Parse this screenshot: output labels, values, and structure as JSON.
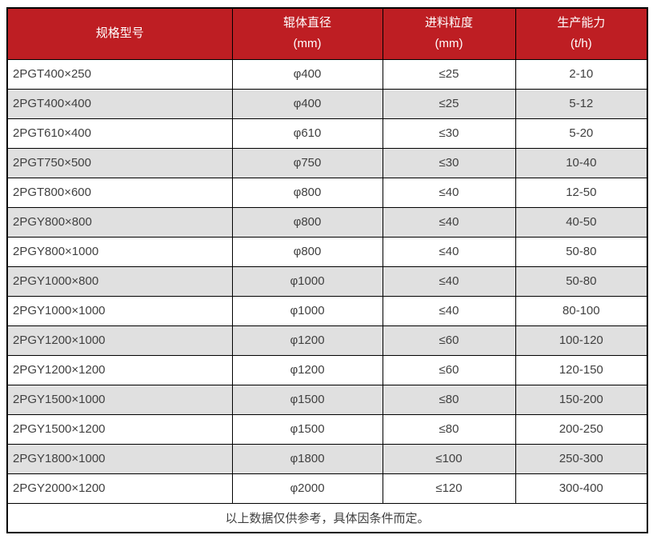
{
  "colors": {
    "header_bg": "#be1e23",
    "header_text": "#ffffff",
    "row_bg": "#ffffff",
    "row_alt_bg": "#e0e0e0",
    "border": "#000000",
    "cell_text": "#404040"
  },
  "chart_data": {
    "type": "table",
    "columns": [
      {
        "title": "规格型号",
        "unit": ""
      },
      {
        "title": "辊体直径",
        "unit": "(mm)"
      },
      {
        "title": "进料粒度",
        "unit": "(mm)"
      },
      {
        "title": "生产能力",
        "unit": "(t/h)"
      }
    ],
    "rows": [
      [
        "2PGT400×250",
        "φ400",
        "≤25",
        "2-10"
      ],
      [
        "2PGT400×400",
        "φ400",
        "≤25",
        "5-12"
      ],
      [
        "2PGT610×400",
        "φ610",
        "≤30",
        "5-20"
      ],
      [
        "2PGT750×500",
        "φ750",
        "≤30",
        "10-40"
      ],
      [
        "2PGT800×600",
        "φ800",
        "≤40",
        "12-50"
      ],
      [
        "2PGY800×800",
        "φ800",
        "≤40",
        "40-50"
      ],
      [
        "2PGY800×1000",
        "φ800",
        "≤40",
        "50-80"
      ],
      [
        "2PGY1000×800",
        "φ1000",
        "≤40",
        "50-80"
      ],
      [
        "2PGY1000×1000",
        "φ1000",
        "≤40",
        "80-100"
      ],
      [
        "2PGY1200×1000",
        "φ1200",
        "≤60",
        "100-120"
      ],
      [
        "2PGY1200×1200",
        "φ1200",
        "≤60",
        "120-150"
      ],
      [
        "2PGY1500×1000",
        "φ1500",
        "≤80",
        "150-200"
      ],
      [
        "2PGY1500×1200",
        "φ1500",
        "≤80",
        "200-250"
      ],
      [
        "2PGY1800×1000",
        "φ1800",
        "≤100",
        "250-300"
      ],
      [
        "2PGY2000×1200",
        "φ2000",
        "≤120",
        "300-400"
      ]
    ],
    "footer_note": "以上数据仅供参考，具体因条件而定。"
  }
}
